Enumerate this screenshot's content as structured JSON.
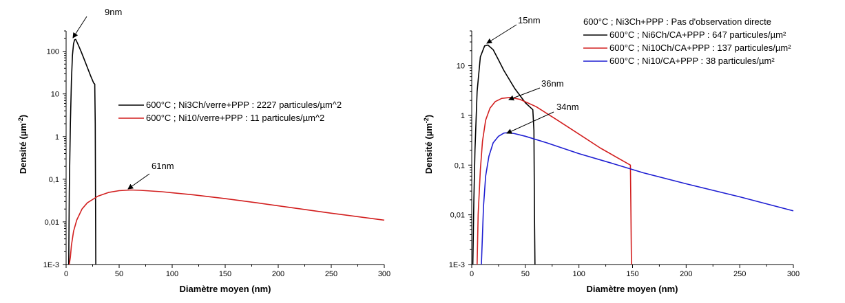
{
  "chart_data": [
    {
      "type": "line",
      "xlabel": "Diamètre moyen (nm)",
      "ylabel": "Densité (µm",
      "ylabel_sup": "-2",
      "ylabel_close": ")",
      "yscale": "log",
      "xlim": [
        0,
        300
      ],
      "ylim": [
        0.001,
        300
      ],
      "xticks": [
        0,
        50,
        100,
        150,
        200,
        250,
        300
      ],
      "xtick_labels": [
        "0",
        "50",
        "100",
        "150",
        "200",
        "250",
        "300"
      ],
      "yticks": [
        0.001,
        0.01,
        0.1,
        1,
        10,
        100
      ],
      "ytick_labels": [
        "1E-3",
        "0,01",
        "0,1",
        "1",
        "10",
        "100"
      ],
      "legend_position": "right",
      "legend_header": "",
      "series": [
        {
          "name": "600°C ; Ni3Ch/verre+PPP : 2227 particules/µm^2",
          "color": "#000000",
          "x": [
            2.5,
            3,
            4,
            5,
            6,
            7,
            8,
            9,
            11,
            14,
            17,
            20,
            23,
            26,
            27,
            27.5,
            28
          ],
          "y": [
            0.001,
            0.05,
            2,
            20,
            80,
            150,
            185,
            190,
            150,
            100,
            65,
            42,
            27,
            18,
            17,
            2,
            0.001
          ]
        },
        {
          "name": "600°C ; Ni10/verre+PPP : 11 particules/µm^2",
          "color": "#d21e1e",
          "x": [
            3,
            4,
            5,
            7,
            10,
            15,
            20,
            30,
            40,
            50,
            61,
            70,
            90,
            120,
            150,
            180,
            210,
            250,
            300
          ],
          "y": [
            0.001,
            0.0015,
            0.0028,
            0.006,
            0.011,
            0.02,
            0.028,
            0.04,
            0.049,
            0.054,
            0.056,
            0.055,
            0.051,
            0.043,
            0.035,
            0.028,
            0.022,
            0.016,
            0.011
          ]
        }
      ],
      "annotations": [
        {
          "text": "9nm",
          "x": 8,
          "y": 190
        },
        {
          "text": "61nm",
          "x": 55,
          "y": 0.056
        }
      ]
    },
    {
      "type": "line",
      "xlabel": "Diamètre moyen (nm)",
      "ylabel": "Densité (µm",
      "ylabel_sup": "-2",
      "ylabel_close": ")",
      "yscale": "log",
      "xlim": [
        0,
        300
      ],
      "ylim": [
        0.001,
        50
      ],
      "xticks": [
        0,
        50,
        100,
        150,
        200,
        250,
        300
      ],
      "xtick_labels": [
        "0",
        "50",
        "100",
        "150",
        "200",
        "250",
        "300"
      ],
      "yticks": [
        0.001,
        0.01,
        0.1,
        1,
        10
      ],
      "ytick_labels": [
        "1E-3",
        "0,01",
        "0,1",
        "1",
        "10"
      ],
      "legend_position": "top-right",
      "legend_header": "600°C ; Ni3Ch+PPP : Pas d'observation directe",
      "series": [
        {
          "name": "600°C ; Ni6Ch/CA+PPP : 647 particules/µm²",
          "color": "#000000",
          "x": [
            1,
            2,
            3,
            5,
            8,
            12,
            15,
            20,
            25,
            30,
            40,
            50,
            57,
            58,
            58.5,
            59
          ],
          "y": [
            0.001,
            0.02,
            0.2,
            3,
            15,
            25,
            26,
            21,
            13,
            8,
            3.5,
            1.8,
            1.3,
            0.5,
            0.01,
            0.001
          ]
        },
        {
          "name": "600°C ; Ni10Ch/CA+PPP : 137 particules/µm²",
          "color": "#d21e1e",
          "x": [
            5,
            6,
            8,
            10,
            13,
            17,
            22,
            28,
            36,
            45,
            60,
            80,
            100,
            120,
            148,
            148.5,
            149
          ],
          "y": [
            0.001,
            0.01,
            0.08,
            0.3,
            0.8,
            1.4,
            1.9,
            2.2,
            2.3,
            2.1,
            1.5,
            0.8,
            0.42,
            0.22,
            0.1,
            0.01,
            0.001
          ]
        },
        {
          "name": "600°C ; Ni10/CA+PPP : 38 particules/µm²",
          "color": "#1e1ed2",
          "x": [
            9,
            10,
            11,
            13,
            16,
            20,
            25,
            30,
            34,
            40,
            50,
            70,
            100,
            130,
            160,
            200,
            250,
            300
          ],
          "y": [
            0.001,
            0.004,
            0.015,
            0.06,
            0.15,
            0.28,
            0.38,
            0.44,
            0.45,
            0.43,
            0.38,
            0.28,
            0.17,
            0.11,
            0.07,
            0.042,
            0.023,
            0.012
          ]
        }
      ],
      "annotations": [
        {
          "text": "15nm",
          "x": 13,
          "y": 26
        },
        {
          "text": "36nm",
          "x": 35,
          "y": 2.3
        },
        {
          "text": "34nm",
          "x": 33,
          "y": 0.45
        }
      ]
    }
  ]
}
